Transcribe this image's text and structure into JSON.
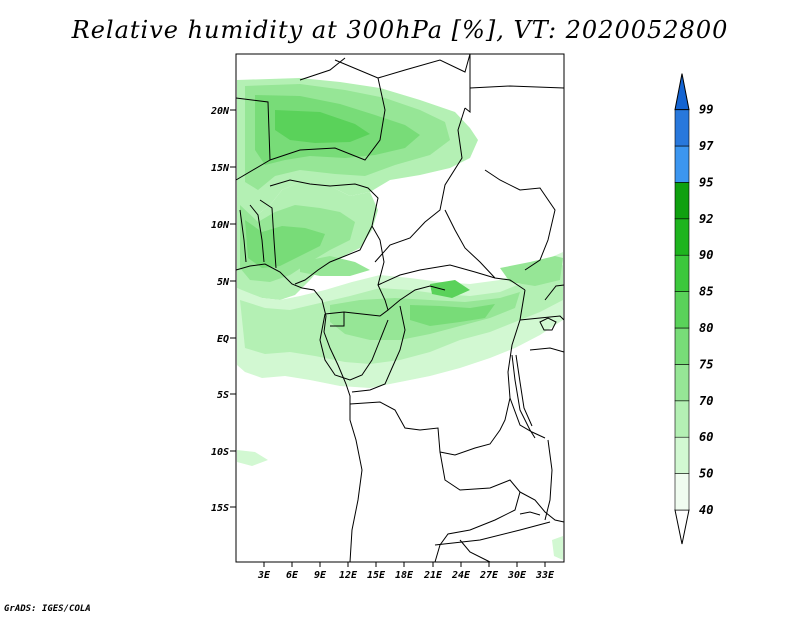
{
  "title": "Relative humidity at 300hPa [%], VT: 2020052800",
  "credit": "GrADS: IGES/COLA",
  "map": {
    "lat_labels": [
      "20N",
      "15N",
      "10N",
      "5N",
      "EQ",
      "5S",
      "10S",
      "15S"
    ],
    "lon_labels": [
      "3E",
      "6E",
      "9E",
      "12E",
      "15E",
      "18E",
      "21E",
      "24E",
      "27E",
      "30E",
      "33E"
    ]
  },
  "colorbar": {
    "levels": [
      "40",
      "50",
      "60",
      "70",
      "75",
      "80",
      "85",
      "90",
      "92",
      "95",
      "97",
      "99"
    ],
    "colors": [
      "#f0fcf0",
      "#d2f8d2",
      "#b4f0b4",
      "#96e696",
      "#78dc78",
      "#5ad25a",
      "#3cc83c",
      "#1eb41e",
      "#0fa00f",
      "#3c96f0",
      "#2878dc",
      "#1464d2"
    ]
  }
}
